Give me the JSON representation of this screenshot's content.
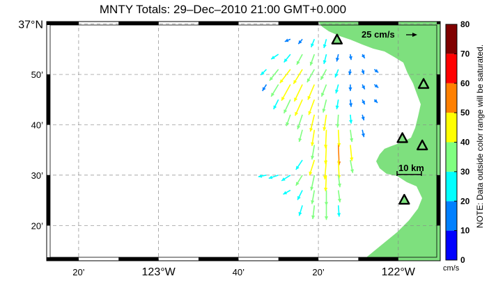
{
  "title": "MNTY Totals: 29–Dec–2010 21:00 GMT+0.000",
  "map": {
    "lat_labels": [
      {
        "lat": 37.0,
        "text": "37°N",
        "major": true
      },
      {
        "lat": 36.8333,
        "text": "50’",
        "major": false
      },
      {
        "lat": 36.6667,
        "text": "40’",
        "major": false
      },
      {
        "lat": 36.5,
        "text": "30’",
        "major": false
      },
      {
        "lat": 36.3333,
        "text": "20’",
        "major": false
      }
    ],
    "lon_labels": [
      {
        "lon": -123.3333,
        "text": "20’",
        "major": false
      },
      {
        "lon": -123.0,
        "text": "123°W",
        "major": true
      },
      {
        "lon": -122.6667,
        "text": "40’",
        "major": false
      },
      {
        "lon": -122.3333,
        "text": "20’",
        "major": false
      },
      {
        "lon": -122.0,
        "text": "122°W",
        "major": true
      }
    ],
    "land_color": "#7ee07e",
    "grid": true
  },
  "reference_vector": {
    "label": "25 cm/s",
    "speed_cm_s": 25
  },
  "scale_bar": {
    "label": "10 km",
    "km": 10
  },
  "colorbar": {
    "min": 0,
    "max": 80,
    "ticks": [
      "0",
      "10",
      "20",
      "30",
      "40",
      "50",
      "60",
      "70",
      "80"
    ],
    "bins": [
      "#0000ff",
      "#0080ff",
      "#00ffff",
      "#80ff80",
      "#ffff00",
      "#ff8000",
      "#ff0000",
      "#800000"
    ],
    "unit": "cm/s",
    "note": "NOTE: Data outside color range will be saturated."
  },
  "stations": [
    {
      "lon": -122.2555,
      "lat": 36.9468
    },
    {
      "lon": -121.8945,
      "lat": 36.8
    },
    {
      "lon": -121.983,
      "lat": 36.6208
    },
    {
      "lon": -121.9,
      "lat": 36.5966
    },
    {
      "lon": -121.975,
      "lat": 36.4167
    }
  ],
  "current_field": {
    "units": "cm/s",
    "rows": [
      {
        "lat": 36.95,
        "lon0": -122.45,
        "dlon": 0.05,
        "u": [
          -14,
          -10,
          -8,
          -6
        ],
        "v": [
          -6,
          -12,
          -20,
          -22
        ],
        "speed": [
          15,
          16,
          22,
          23
        ]
      },
      {
        "lat": 36.9,
        "lon0": -122.5,
        "dlon": 0.05,
        "u": [
          -18,
          -16,
          -14,
          -10,
          -6,
          -4,
          2,
          6
        ],
        "v": [
          -12,
          -20,
          -26,
          -28,
          -24,
          -18,
          -14,
          -10
        ],
        "speed": [
          22,
          26,
          30,
          30,
          25,
          19,
          14,
          12
        ]
      },
      {
        "lat": 36.85,
        "lon0": -122.55,
        "dlon": 0.05,
        "u": [
          -14,
          -22,
          -26,
          -22,
          -18,
          -14,
          -8,
          -2,
          4,
          10
        ],
        "v": [
          -14,
          -28,
          -34,
          -36,
          -32,
          -26,
          -20,
          -14,
          -12,
          -8
        ],
        "speed": [
          20,
          36,
          43,
          42,
          37,
          30,
          22,
          14,
          13,
          13
        ]
      },
      {
        "lat": 36.8,
        "lon0": -122.55,
        "dlon": 0.05,
        "u": [
          -10,
          -18,
          -22,
          -20,
          -16,
          -12,
          -6,
          0,
          6,
          10
        ],
        "v": [
          -16,
          -30,
          -40,
          -42,
          -38,
          -30,
          -22,
          -16,
          -12,
          -8
        ],
        "speed": [
          19,
          35,
          46,
          47,
          41,
          32,
          23,
          16,
          13,
          13
        ]
      },
      {
        "lat": 36.75,
        "lon0": -122.5,
        "dlon": 0.05,
        "u": [
          -12,
          -16,
          -18,
          -14,
          -8,
          -4,
          2,
          6,
          8
        ],
        "v": [
          -24,
          -34,
          -40,
          -38,
          -32,
          -24,
          -18,
          -12,
          -8
        ],
        "speed": [
          27,
          38,
          44,
          40,
          33,
          24,
          18,
          13,
          11
        ]
      },
      {
        "lat": 36.7,
        "lon0": -122.45,
        "dlon": 0.05,
        "u": [
          -10,
          -12,
          -10,
          -6,
          -2,
          2,
          4
        ],
        "v": [
          -28,
          -36,
          -42,
          -40,
          -32,
          -22,
          -14
        ],
        "speed": [
          30,
          38,
          43,
          40,
          32,
          22,
          15
        ]
      },
      {
        "lat": 36.65,
        "lon0": -122.4,
        "dlon": 0.05,
        "u": [
          -8,
          -6,
          -2,
          2,
          4,
          4
        ],
        "v": [
          -30,
          -40,
          -46,
          -42,
          -30,
          -18
        ],
        "speed": [
          31,
          40,
          46,
          42,
          30,
          18
        ]
      },
      {
        "lat": 36.6,
        "lon0": -122.35,
        "dlon": 0.05,
        "u": [
          -6,
          -2,
          2,
          4
        ],
        "v": [
          -36,
          -48,
          -50,
          -40
        ],
        "speed": [
          36,
          48,
          50,
          40
        ]
      },
      {
        "lat": 36.55,
        "lon0": -122.4,
        "dlon": 0.05,
        "u": [
          -16,
          -12,
          -4,
          2,
          6
        ],
        "v": [
          -24,
          -38,
          -48,
          -46,
          -32
        ],
        "speed": [
          29,
          40,
          48,
          46,
          33
        ]
      },
      {
        "lat": 36.5,
        "lon0": -122.55,
        "dlon": 0.05,
        "u": [
          -20,
          -24,
          -22,
          -16,
          -8,
          -2,
          4
        ],
        "v": [
          -4,
          -8,
          -14,
          -26,
          -38,
          -40,
          -30
        ],
        "speed": [
          20,
          25,
          26,
          31,
          39,
          40,
          30
        ]
      },
      {
        "lat": 36.45,
        "lon0": -122.45,
        "dlon": 0.05,
        "u": [
          -18,
          -12,
          -6,
          0,
          4
        ],
        "v": [
          -10,
          -24,
          -34,
          -38,
          -30
        ],
        "speed": [
          21,
          27,
          35,
          38,
          30
        ]
      },
      {
        "lat": 36.4,
        "lon0": -122.4,
        "dlon": 0.05,
        "u": [
          -8,
          -4,
          0,
          2
        ],
        "v": [
          -26,
          -34,
          -36,
          -28
        ],
        "speed": [
          27,
          34,
          36,
          28
        ]
      }
    ]
  }
}
